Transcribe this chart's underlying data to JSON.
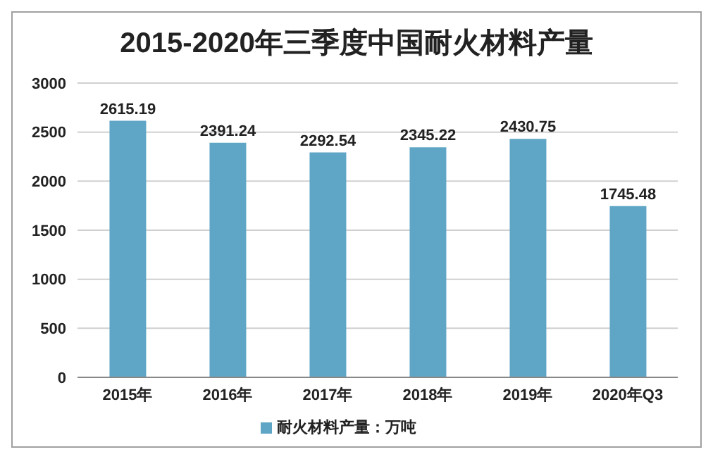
{
  "chart_data": {
    "type": "bar",
    "title": "2015-2020年三季度中国耐火材料产量",
    "categories": [
      "2015年",
      "2016年",
      "2017年",
      "2018年",
      "2019年",
      "2020年Q3"
    ],
    "series": [
      {
        "name": "耐火材料产量：万吨",
        "color": "#5fa6c6",
        "values": [
          2615.19,
          2391.24,
          2292.54,
          2345.22,
          2430.75,
          1745.48
        ]
      }
    ],
    "ylim": [
      0,
      3000
    ],
    "yticks": [
      0,
      500,
      1000,
      1500,
      2000,
      2500,
      3000
    ],
    "grid": "y",
    "legend": "bottom",
    "data_labels": true
  }
}
